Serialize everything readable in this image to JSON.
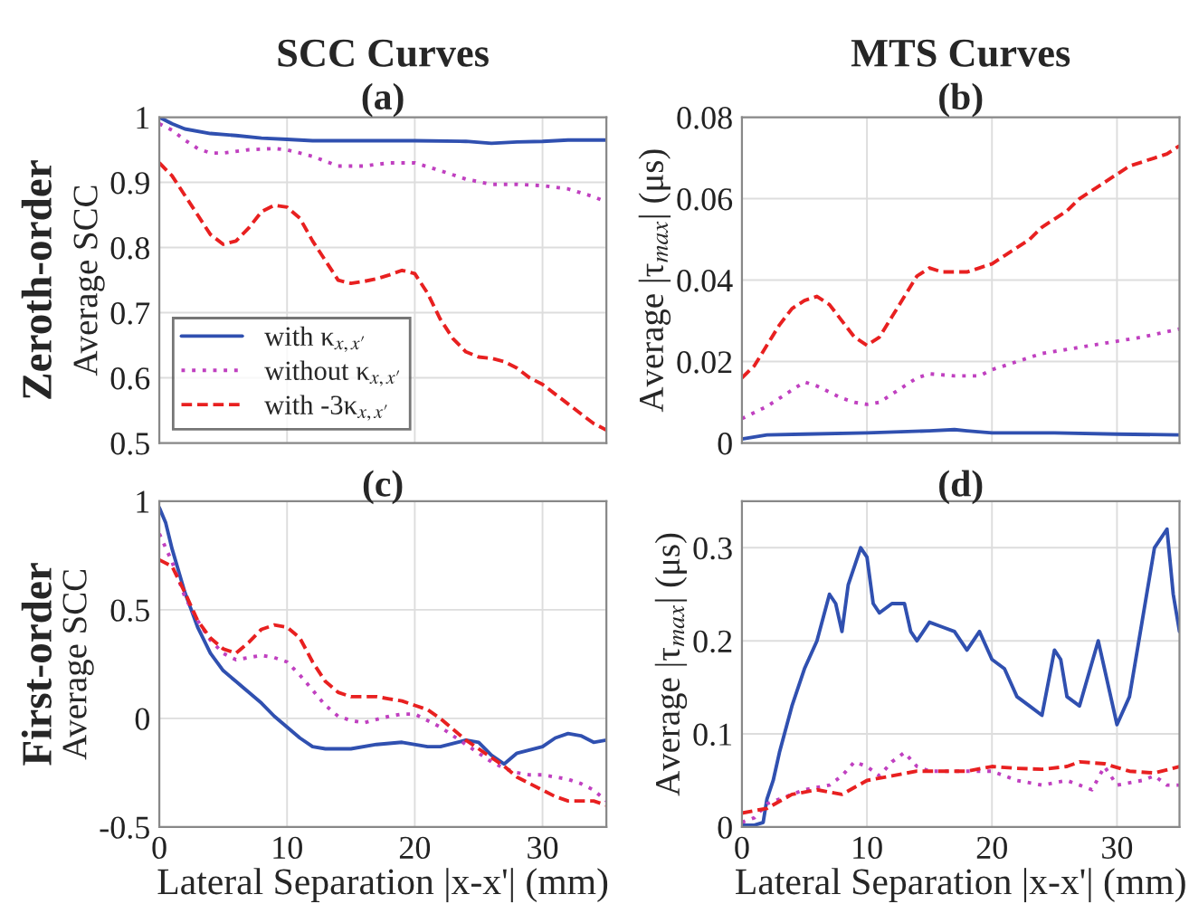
{
  "chart_data": [
    {
      "type": "line",
      "title": "SCC Curves",
      "subtitle": "(a)",
      "ylabel": "Average SCC",
      "annotations": [
        "Zeroth-order"
      ],
      "xlim": [
        0,
        35
      ],
      "xticks": [
        0,
        10,
        20,
        30
      ],
      "ylim": [
        0.5,
        1
      ],
      "yticks": [
        0.5,
        0.6,
        0.7,
        0.8,
        0.9,
        1
      ],
      "grid": true,
      "legend": "bottom left",
      "tick_labels": "y",
      "series": [
        {
          "name": "with κ$_{x,x′}$",
          "color": "#3050b0",
          "line_style": "solid",
          "x": [
            0,
            1,
            2,
            4,
            6,
            8,
            10,
            12,
            15,
            20,
            24,
            26,
            28,
            30,
            32,
            35
          ],
          "values": [
            1.0,
            0.99,
            0.982,
            0.975,
            0.972,
            0.968,
            0.966,
            0.964,
            0.964,
            0.964,
            0.963,
            0.96,
            0.962,
            0.963,
            0.965,
            0.965
          ]
        },
        {
          "name": "without κ$_{x,x′}$",
          "color": "#c040c0",
          "line_style": "dotted",
          "x": [
            0,
            1,
            2,
            3,
            4,
            5,
            7,
            9,
            10,
            12,
            14,
            16,
            18,
            20,
            22,
            24,
            26,
            28,
            30,
            32,
            34,
            35
          ],
          "values": [
            0.99,
            0.98,
            0.965,
            0.952,
            0.945,
            0.945,
            0.95,
            0.952,
            0.95,
            0.94,
            0.925,
            0.925,
            0.93,
            0.93,
            0.918,
            0.905,
            0.897,
            0.897,
            0.895,
            0.89,
            0.878,
            0.87
          ]
        },
        {
          "name": "with -3κ$_{x,x′}$",
          "color": "#e82020",
          "line_style": "dashed",
          "x": [
            0,
            1,
            2,
            3,
            4,
            5,
            6,
            7,
            8,
            9,
            10,
            11,
            12,
            13,
            14,
            15,
            16,
            17,
            18,
            19,
            20,
            21,
            22,
            23,
            24,
            25,
            26,
            27,
            28,
            29,
            30,
            31,
            32,
            33,
            34,
            35
          ],
          "values": [
            0.93,
            0.91,
            0.88,
            0.85,
            0.82,
            0.805,
            0.81,
            0.83,
            0.855,
            0.865,
            0.862,
            0.845,
            0.81,
            0.78,
            0.75,
            0.745,
            0.748,
            0.752,
            0.758,
            0.765,
            0.76,
            0.73,
            0.69,
            0.66,
            0.64,
            0.632,
            0.63,
            0.625,
            0.615,
            0.6,
            0.59,
            0.575,
            0.56,
            0.545,
            0.53,
            0.52
          ]
        }
      ]
    },
    {
      "type": "line",
      "title": "MTS Curves",
      "subtitle": "(b)",
      "ylabel": "Average |τ$_{max}$| (μs)",
      "xlim": [
        0,
        35
      ],
      "xticks": [
        0,
        10,
        20,
        30
      ],
      "ylim": [
        0,
        0.08
      ],
      "yticks": [
        0,
        0.02,
        0.04,
        0.06,
        0.08
      ],
      "grid": true,
      "tick_labels": "y",
      "series": [
        {
          "color": "#3050b0",
          "line_style": "solid",
          "x": [
            0,
            2,
            5,
            10,
            15,
            17,
            18,
            20,
            25,
            30,
            35
          ],
          "values": [
            0.001,
            0.002,
            0.0022,
            0.0025,
            0.003,
            0.0033,
            0.003,
            0.0025,
            0.0025,
            0.0022,
            0.002
          ]
        },
        {
          "color": "#c040c0",
          "line_style": "dotted",
          "x": [
            0,
            2,
            3,
            4,
            5,
            6,
            8,
            9,
            10,
            11,
            12,
            13,
            14,
            15,
            17,
            18,
            19,
            20,
            22,
            24,
            26,
            28,
            30,
            32,
            35
          ],
          "values": [
            0.006,
            0.009,
            0.011,
            0.013,
            0.015,
            0.014,
            0.011,
            0.01,
            0.0095,
            0.01,
            0.012,
            0.014,
            0.016,
            0.017,
            0.0165,
            0.0165,
            0.0165,
            0.018,
            0.02,
            0.022,
            0.023,
            0.024,
            0.025,
            0.026,
            0.028
          ]
        },
        {
          "color": "#e82020",
          "line_style": "dashed",
          "x": [
            0,
            1,
            2,
            3,
            4,
            5,
            6,
            7,
            8,
            9,
            10,
            11,
            12,
            13,
            14,
            15,
            16,
            17,
            18,
            19,
            20,
            21,
            22,
            23,
            24,
            25,
            26,
            27,
            28,
            29,
            30,
            31,
            32,
            33,
            34,
            35
          ],
          "values": [
            0.016,
            0.019,
            0.024,
            0.029,
            0.033,
            0.035,
            0.036,
            0.034,
            0.03,
            0.026,
            0.024,
            0.026,
            0.031,
            0.036,
            0.041,
            0.043,
            0.042,
            0.042,
            0.042,
            0.043,
            0.044,
            0.046,
            0.048,
            0.05,
            0.053,
            0.055,
            0.057,
            0.06,
            0.062,
            0.064,
            0.066,
            0.068,
            0.069,
            0.07,
            0.071,
            0.073
          ]
        }
      ]
    },
    {
      "type": "line",
      "title": "(c)",
      "ylabel": "Average SCC",
      "xlabel": "Lateral Separation |x-x'| (mm)",
      "annotations": [
        "First-order"
      ],
      "xlim": [
        0,
        35
      ],
      "xticks": [
        0,
        10,
        20,
        30
      ],
      "ylim": [
        -0.5,
        1
      ],
      "yticks": [
        -0.5,
        0,
        0.5,
        1
      ],
      "grid": true,
      "series": [
        {
          "color": "#3050b0",
          "line_style": "solid",
          "x": [
            0,
            0.5,
            1,
            2,
            3,
            4,
            5,
            6,
            7,
            8,
            9,
            10,
            11,
            12,
            13,
            15,
            17,
            19,
            21,
            22,
            24,
            25,
            26,
            27,
            28,
            30,
            31,
            32,
            33,
            34,
            35
          ],
          "values": [
            0.97,
            0.9,
            0.78,
            0.58,
            0.42,
            0.3,
            0.22,
            0.17,
            0.12,
            0.07,
            0.01,
            -0.04,
            -0.09,
            -0.13,
            -0.14,
            -0.14,
            -0.12,
            -0.11,
            -0.13,
            -0.13,
            -0.1,
            -0.11,
            -0.17,
            -0.21,
            -0.16,
            -0.13,
            -0.09,
            -0.07,
            -0.08,
            -0.11,
            -0.1
          ]
        },
        {
          "color": "#c040c0",
          "line_style": "dotted",
          "x": [
            0,
            1,
            2,
            3,
            4,
            5,
            6,
            7,
            8,
            9,
            10,
            11,
            12,
            13,
            14,
            15,
            16,
            18,
            19,
            20,
            21,
            22,
            23,
            24,
            25,
            26,
            27,
            28,
            29,
            30,
            31,
            32,
            33,
            34,
            35
          ],
          "values": [
            0.85,
            0.72,
            0.56,
            0.45,
            0.36,
            0.3,
            0.27,
            0.28,
            0.29,
            0.28,
            0.26,
            0.2,
            0.13,
            0.06,
            0.01,
            -0.01,
            -0.02,
            0.01,
            0.02,
            0.02,
            -0.01,
            -0.04,
            -0.08,
            -0.12,
            -0.16,
            -0.2,
            -0.23,
            -0.25,
            -0.26,
            -0.26,
            -0.27,
            -0.28,
            -0.3,
            -0.33,
            -0.38
          ]
        },
        {
          "color": "#e82020",
          "line_style": "dashed",
          "x": [
            0,
            1,
            2,
            3,
            4,
            5,
            6,
            7,
            8,
            9,
            10,
            11,
            12,
            13,
            14,
            15,
            16,
            17,
            18,
            19,
            20,
            21,
            22,
            23,
            24,
            25,
            26,
            27,
            28,
            29,
            30,
            31,
            32,
            33,
            34,
            35
          ],
          "values": [
            0.73,
            0.7,
            0.58,
            0.45,
            0.37,
            0.32,
            0.3,
            0.35,
            0.41,
            0.43,
            0.42,
            0.37,
            0.26,
            0.17,
            0.12,
            0.1,
            0.1,
            0.1,
            0.09,
            0.08,
            0.06,
            0.04,
            0.0,
            -0.05,
            -0.1,
            -0.14,
            -0.18,
            -0.22,
            -0.27,
            -0.3,
            -0.33,
            -0.36,
            -0.38,
            -0.38,
            -0.38,
            -0.4
          ]
        }
      ]
    },
    {
      "type": "line",
      "title": "(d)",
      "ylabel": "Average |τ$_{max}$| (μs)",
      "xlabel": "Lateral Separation |x-x'| (mm)",
      "xlim": [
        0,
        35
      ],
      "xticks": [
        0,
        10,
        20,
        30
      ],
      "ylim": [
        0,
        0.35
      ],
      "yticks": [
        0,
        0.1,
        0.2,
        0.3
      ],
      "grid": true,
      "series": [
        {
          "color": "#3050b0",
          "line_style": "solid",
          "x": [
            0,
            1,
            1.7,
            2,
            2.5,
            3,
            4,
            5,
            6,
            7,
            7.5,
            8,
            8.5,
            9,
            9.5,
            10,
            10.5,
            11,
            12,
            13,
            13.5,
            14,
            15,
            16,
            17,
            18,
            19,
            20,
            21,
            22,
            23,
            24,
            25,
            25.5,
            26,
            27,
            28.5,
            29,
            30,
            31,
            32,
            33,
            34,
            34.5,
            35
          ],
          "values": [
            0.002,
            0.002,
            0.005,
            0.03,
            0.05,
            0.08,
            0.13,
            0.17,
            0.2,
            0.25,
            0.24,
            0.21,
            0.26,
            0.28,
            0.3,
            0.29,
            0.24,
            0.23,
            0.24,
            0.24,
            0.21,
            0.2,
            0.22,
            0.215,
            0.21,
            0.19,
            0.21,
            0.18,
            0.17,
            0.14,
            0.13,
            0.12,
            0.19,
            0.18,
            0.14,
            0.13,
            0.2,
            0.17,
            0.11,
            0.14,
            0.22,
            0.3,
            0.32,
            0.25,
            0.21
          ]
        },
        {
          "color": "#c040c0",
          "line_style": "dotted",
          "x": [
            0,
            1,
            2,
            3,
            5,
            7,
            8,
            9,
            10,
            11,
            12,
            13,
            14,
            15,
            17,
            19,
            20,
            22,
            24,
            26,
            28,
            29,
            30,
            32,
            33,
            34,
            35
          ],
          "values": [
            0.005,
            0.01,
            0.025,
            0.03,
            0.04,
            0.045,
            0.055,
            0.07,
            0.065,
            0.055,
            0.07,
            0.08,
            0.065,
            0.06,
            0.06,
            0.06,
            0.06,
            0.05,
            0.045,
            0.05,
            0.04,
            0.065,
            0.045,
            0.05,
            0.055,
            0.045,
            0.045
          ]
        },
        {
          "color": "#e82020",
          "line_style": "dashed",
          "x": [
            0,
            2,
            4,
            6,
            8,
            10,
            12,
            14,
            16,
            18,
            20,
            22,
            24,
            26,
            27,
            29,
            31,
            33,
            35
          ],
          "values": [
            0.015,
            0.02,
            0.035,
            0.04,
            0.035,
            0.05,
            0.055,
            0.06,
            0.06,
            0.06,
            0.065,
            0.063,
            0.062,
            0.065,
            0.07,
            0.068,
            0.06,
            0.058,
            0.065
          ]
        }
      ]
    }
  ]
}
